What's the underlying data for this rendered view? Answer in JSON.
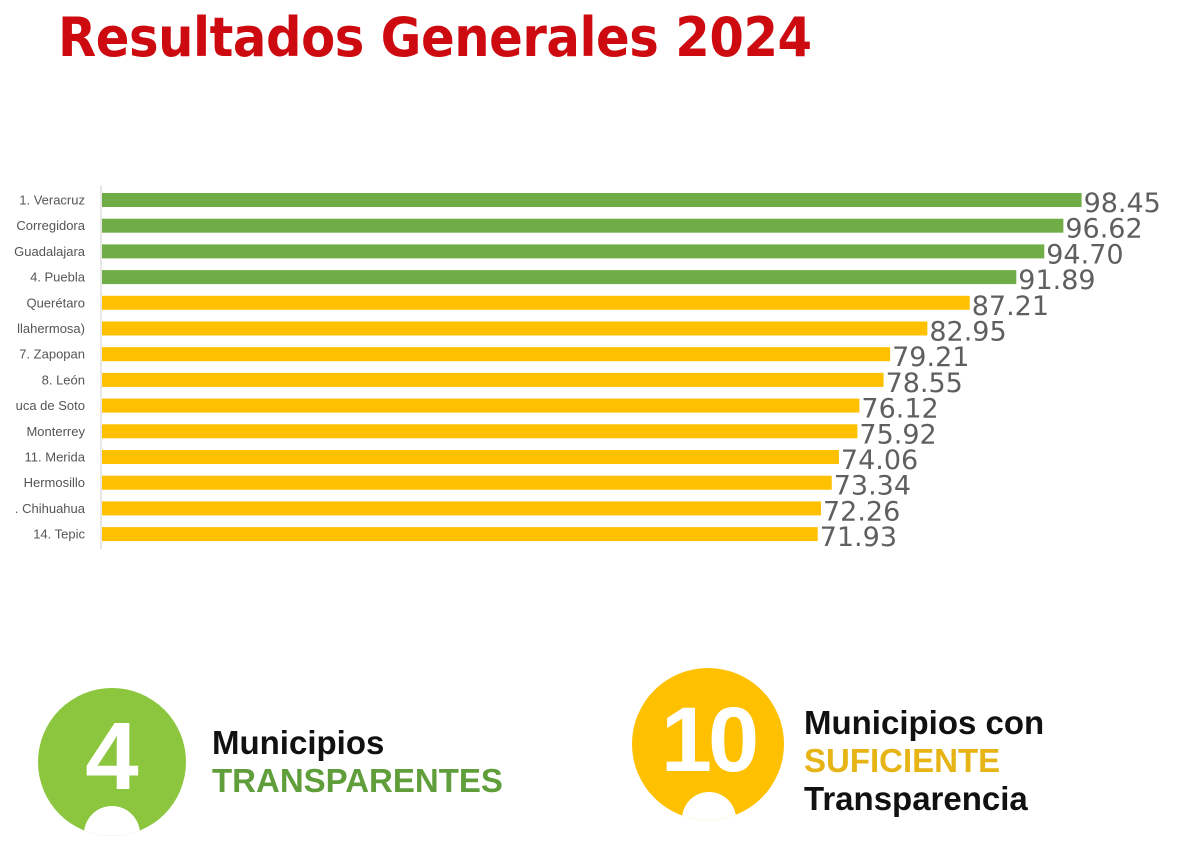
{
  "title": "Resultados Generales 2024",
  "colors": {
    "title": "#cc0a10",
    "green": "#70ad47",
    "yellow": "#ffc000",
    "green_text": "#5f9e3a",
    "yellow_text": "#e7b416"
  },
  "chart_data": {
    "type": "bar",
    "orientation": "horizontal",
    "categories": [
      "1. Veracruz",
      "Corregidora",
      "Guadalajara",
      "4. Puebla",
      "Querétaro",
      "llahermosa)",
      "7. Zapopan",
      "8. León",
      "uca de Soto",
      "Monterrey",
      "11. Merida",
      "Hermosillo",
      ". Chihuahua",
      "14. Tepic"
    ],
    "values": [
      98.45,
      96.62,
      94.7,
      91.89,
      87.21,
      82.95,
      79.21,
      78.55,
      76.12,
      75.92,
      74.06,
      73.34,
      72.26,
      71.93
    ],
    "value_labels": [
      "98.45",
      "96.62",
      "94.70",
      "91.89",
      "87.21",
      "82.95",
      "79.21",
      "78.55",
      "76.12",
      "75.92",
      "74.06",
      "73.34",
      "72.26",
      "71.93"
    ],
    "bar_colors": [
      "green",
      "green",
      "green",
      "green",
      "yellow",
      "yellow",
      "yellow",
      "yellow",
      "yellow",
      "yellow",
      "yellow",
      "yellow",
      "yellow",
      "yellow"
    ],
    "xlim": [
      0,
      100
    ],
    "grid": false,
    "legend": "none"
  },
  "badges": {
    "transparent": {
      "number": "4",
      "line1": "Municipios",
      "line2": "TRANSPARENTES"
    },
    "sufficient": {
      "number": "10",
      "line1": "Municipios con",
      "line2": "SUFICIENTE",
      "line3": "Transparencia"
    }
  }
}
